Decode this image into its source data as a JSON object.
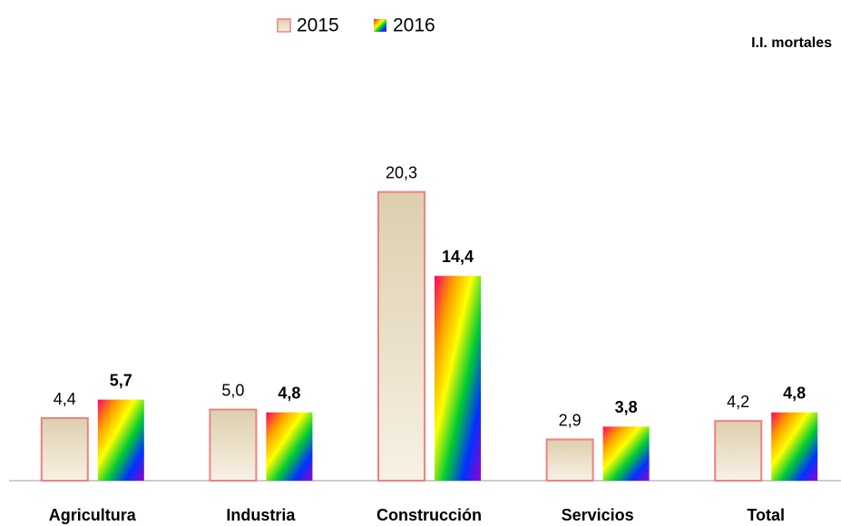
{
  "chart_data": {
    "type": "bar",
    "annotation": "I.I. mortales",
    "categories": [
      "Agricultura",
      "Industria",
      "Construcción",
      "Servicios",
      "Total"
    ],
    "series": [
      {
        "name": "2015",
        "color": [
          "#dccfae",
          "#f8f1e4"
        ],
        "border": "#f08080",
        "values": [
          4.4,
          5.0,
          20.3,
          2.9,
          4.2
        ],
        "value_labels": [
          "4,4",
          "5,0",
          "20,3",
          "2,9",
          "4,2"
        ]
      },
      {
        "name": "2016",
        "color": [
          "#ff0066",
          "#ff9900",
          "#ffff00",
          "#00cc33",
          "#0033ff",
          "#9900cc"
        ],
        "values": [
          5.7,
          4.8,
          14.4,
          3.8,
          4.8
        ],
        "value_labels": [
          "5,7",
          "4,8",
          "14,4",
          "3,8",
          "4,8"
        ]
      }
    ],
    "ylim": [
      0,
      25
    ]
  }
}
